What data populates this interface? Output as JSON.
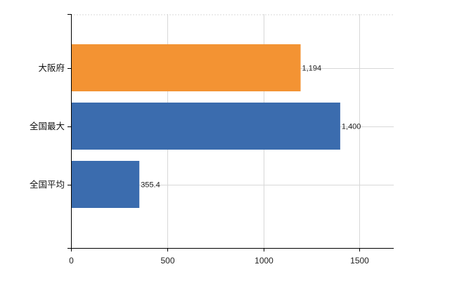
{
  "chart_data": {
    "type": "bar",
    "orientation": "horizontal",
    "categories": [
      "大阪府",
      "全国最大",
      "全国平均"
    ],
    "values": [
      1194,
      1400,
      355.4
    ],
    "value_labels": [
      "1,194",
      "1,400",
      "355.4"
    ],
    "bar_colors": [
      "#F39333",
      "#3B6CAE",
      "#3B6CAE"
    ],
    "xlim": [
      0,
      1680
    ],
    "x_ticks": [
      0,
      500,
      1000,
      1500
    ],
    "x_tick_labels": [
      "0",
      "500",
      "1000",
      "1500"
    ],
    "grid": true,
    "grid_color": "#d8d8d8",
    "legend": "none",
    "title": "",
    "xlabel": "",
    "ylabel": ""
  }
}
